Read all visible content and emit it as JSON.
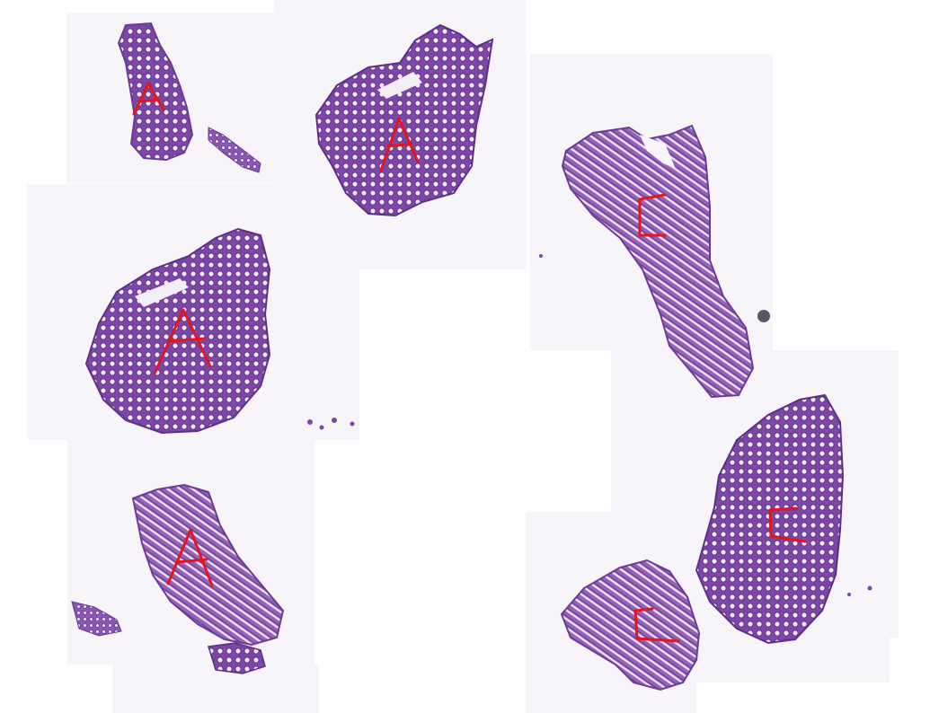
{
  "image": {
    "description_type": "whole-slide histology montage",
    "colors": {
      "background": "#ffffff",
      "tile_background": "#f7f5f9",
      "tissue_dark": "#6b3a96",
      "tissue_mid": "#8d5bb4",
      "tissue_light": "#c3a3d8",
      "gland_lumen": "#f4eef8",
      "annotation_red": "#e4161c"
    },
    "annotations": [
      {
        "letter": "A",
        "shape": "a-letter"
      },
      {
        "letter": "A",
        "shape": "a-letter"
      },
      {
        "letter": "A",
        "shape": "a-letter"
      },
      {
        "letter": "A",
        "shape": "a-letter"
      },
      {
        "letter": "C",
        "shape": "c-letter"
      },
      {
        "letter": "C",
        "shape": "c-letter"
      },
      {
        "letter": "C",
        "shape": "c-letter"
      }
    ]
  }
}
